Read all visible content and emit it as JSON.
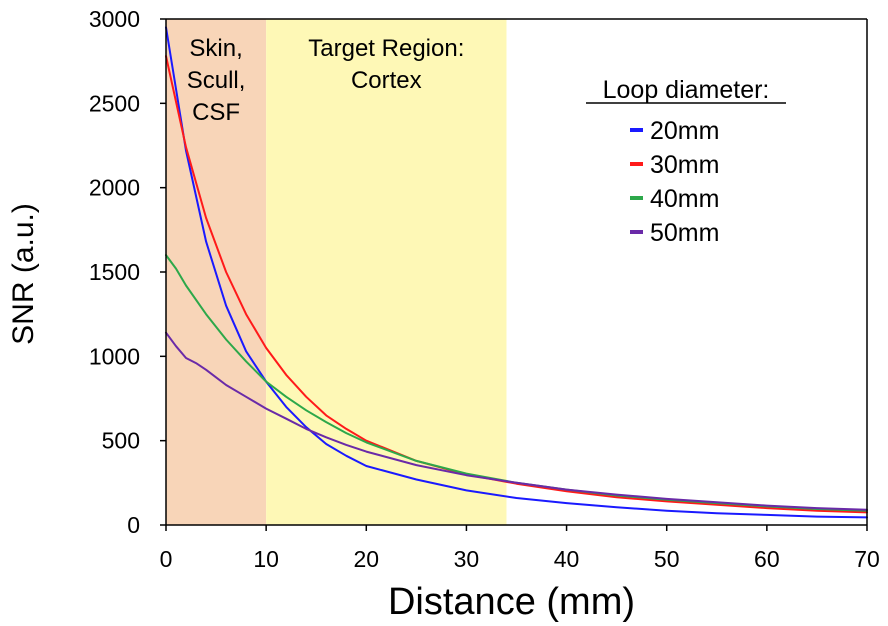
{
  "chart_data": {
    "type": "line",
    "title": "",
    "xlabel": "Distance (mm)",
    "ylabel": "SNR (a.u.)",
    "xlim": [
      0,
      70
    ],
    "ylim": [
      0,
      3000
    ],
    "xticks": [
      0,
      10,
      20,
      30,
      40,
      50,
      60,
      70
    ],
    "yticks": [
      0,
      500,
      1000,
      1500,
      2000,
      2500,
      3000
    ],
    "regions": [
      {
        "label_lines": [
          "Skin,",
          "Scull,",
          "CSF"
        ],
        "x_start": 0,
        "x_end": 10,
        "color": "#f8d5b8"
      },
      {
        "label_lines": [
          "Target Region:",
          "Cortex"
        ],
        "x_start": 10,
        "x_end": 34,
        "color": "#fef8b6"
      }
    ],
    "legend": {
      "title": "Loop diameter:",
      "position": "top-right"
    },
    "series": [
      {
        "name": "20mm",
        "color": "#1a1aff",
        "x": [
          0,
          2,
          4,
          6,
          8,
          10,
          12,
          14,
          16,
          18,
          20,
          25,
          30,
          35,
          40,
          45,
          50,
          55,
          60,
          65,
          70
        ],
        "y": [
          2950,
          2220,
          1680,
          1300,
          1030,
          850,
          700,
          580,
          480,
          410,
          350,
          270,
          205,
          160,
          130,
          105,
          85,
          70,
          60,
          50,
          45
        ]
      },
      {
        "name": "30mm",
        "color": "#ff1a1a",
        "x": [
          0,
          2,
          4,
          6,
          8,
          10,
          12,
          14,
          16,
          18,
          20,
          25,
          30,
          35,
          40,
          45,
          50,
          55,
          60,
          65,
          70
        ],
        "y": [
          2780,
          2240,
          1820,
          1500,
          1250,
          1050,
          890,
          760,
          650,
          570,
          500,
          380,
          300,
          245,
          200,
          165,
          140,
          120,
          100,
          85,
          75
        ]
      },
      {
        "name": "40mm",
        "color": "#2da84a",
        "x": [
          0,
          1,
          2,
          4,
          6,
          8,
          10,
          12,
          14,
          16,
          18,
          20,
          25,
          30,
          35,
          40,
          45,
          50,
          55,
          60,
          65,
          70
        ],
        "y": [
          1600,
          1520,
          1420,
          1250,
          1100,
          970,
          850,
          760,
          680,
          610,
          545,
          490,
          380,
          305,
          250,
          210,
          175,
          150,
          130,
          110,
          95,
          85
        ]
      },
      {
        "name": "50mm",
        "color": "#6a2aa8",
        "x": [
          0,
          1,
          2,
          3,
          4,
          6,
          8,
          10,
          12,
          14,
          16,
          18,
          20,
          25,
          30,
          35,
          40,
          45,
          50,
          55,
          60,
          65,
          70
        ],
        "y": [
          1140,
          1060,
          990,
          960,
          920,
          830,
          760,
          690,
          630,
          570,
          520,
          475,
          435,
          355,
          295,
          250,
          210,
          180,
          155,
          135,
          115,
          100,
          90
        ]
      }
    ]
  }
}
